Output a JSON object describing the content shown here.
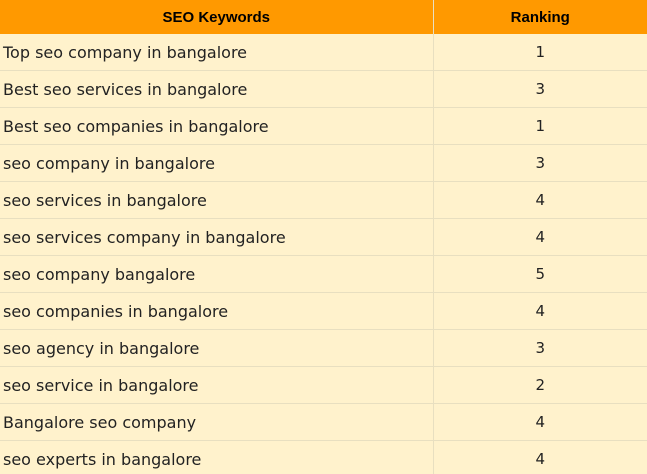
{
  "table": {
    "headers": [
      "SEO Keywords",
      "Ranking"
    ],
    "rows": [
      {
        "keyword": "Top seo company in bangalore",
        "ranking": "1"
      },
      {
        "keyword": "Best seo services in bangalore",
        "ranking": "3"
      },
      {
        "keyword": "Best seo companies in bangalore",
        "ranking": "1"
      },
      {
        "keyword": "seo company in bangalore",
        "ranking": "3"
      },
      {
        "keyword": "seo services in bangalore",
        "ranking": "4"
      },
      {
        "keyword": "seo services company in bangalore",
        "ranking": "4"
      },
      {
        "keyword": "seo company bangalore",
        "ranking": "5"
      },
      {
        "keyword": "seo companies in bangalore",
        "ranking": "4"
      },
      {
        "keyword": "seo agency in bangalore",
        "ranking": "3"
      },
      {
        "keyword": "seo service in bangalore",
        "ranking": "2"
      },
      {
        "keyword": "Bangalore seo company",
        "ranking": "4"
      },
      {
        "keyword": "seo experts in bangalore",
        "ranking": "4"
      }
    ]
  },
  "colors": {
    "header_bg": "#ff9900",
    "row_bg": "#fff2cc",
    "grid_line": "#e8dfc0"
  }
}
